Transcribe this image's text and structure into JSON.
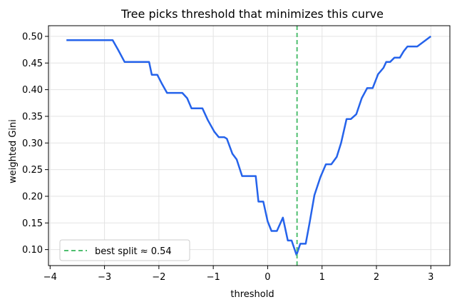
{
  "chart_data": {
    "type": "line",
    "title": "Tree picks threshold that minimizes this curve",
    "xlabel": "threshold",
    "ylabel": "weighted Gini",
    "xlim": [
      -4.03,
      3.35
    ],
    "ylim": [
      0.07,
      0.52
    ],
    "grid": true,
    "legend_position": "lower-left",
    "x_ticks": [
      -4,
      -3,
      -2,
      -1,
      0,
      1,
      2,
      3
    ],
    "x_tick_labels": [
      "−4",
      "−3",
      "−2",
      "−1",
      "0",
      "1",
      "2",
      "3"
    ],
    "y_ticks": [
      0.1,
      0.15,
      0.2,
      0.25,
      0.3,
      0.35,
      0.4,
      0.45,
      0.5
    ],
    "y_tick_labels": [
      "0.10",
      "0.15",
      "0.20",
      "0.25",
      "0.30",
      "0.35",
      "0.40",
      "0.45",
      "0.50"
    ],
    "series": [
      {
        "color": "#2563eb",
        "x": [
          -3.7,
          -2.85,
          -2.75,
          -2.63,
          -2.18,
          -2.13,
          -2.03,
          -1.95,
          -1.85,
          -1.57,
          -1.48,
          -1.4,
          -1.2,
          -1.1,
          -0.98,
          -0.9,
          -0.8,
          -0.75,
          -0.65,
          -0.57,
          -0.47,
          -0.22,
          -0.17,
          -0.08,
          0.0,
          0.07,
          0.17,
          0.28,
          0.37,
          0.44,
          0.53,
          0.6,
          0.7,
          0.77,
          0.86,
          0.97,
          1.07,
          1.17,
          1.27,
          1.35,
          1.45,
          1.53,
          1.63,
          1.73,
          1.83,
          1.93,
          2.03,
          2.13,
          2.18,
          2.25,
          2.33,
          2.43,
          2.5,
          2.57,
          2.75,
          3.0
        ],
        "y": [
          0.493,
          0.493,
          0.475,
          0.452,
          0.452,
          0.428,
          0.428,
          0.412,
          0.394,
          0.394,
          0.384,
          0.365,
          0.365,
          0.343,
          0.321,
          0.311,
          0.311,
          0.308,
          0.28,
          0.269,
          0.238,
          0.238,
          0.19,
          0.19,
          0.153,
          0.135,
          0.135,
          0.16,
          0.117,
          0.117,
          0.09,
          0.111,
          0.111,
          0.15,
          0.202,
          0.236,
          0.26,
          0.26,
          0.274,
          0.3,
          0.345,
          0.345,
          0.354,
          0.384,
          0.403,
          0.403,
          0.429,
          0.441,
          0.452,
          0.452,
          0.46,
          0.46,
          0.472,
          0.481,
          0.481,
          0.5
        ]
      }
    ],
    "vline": {
      "x": 0.54,
      "color": "#4fbf70",
      "label": "best split ≈ 0.54"
    }
  }
}
